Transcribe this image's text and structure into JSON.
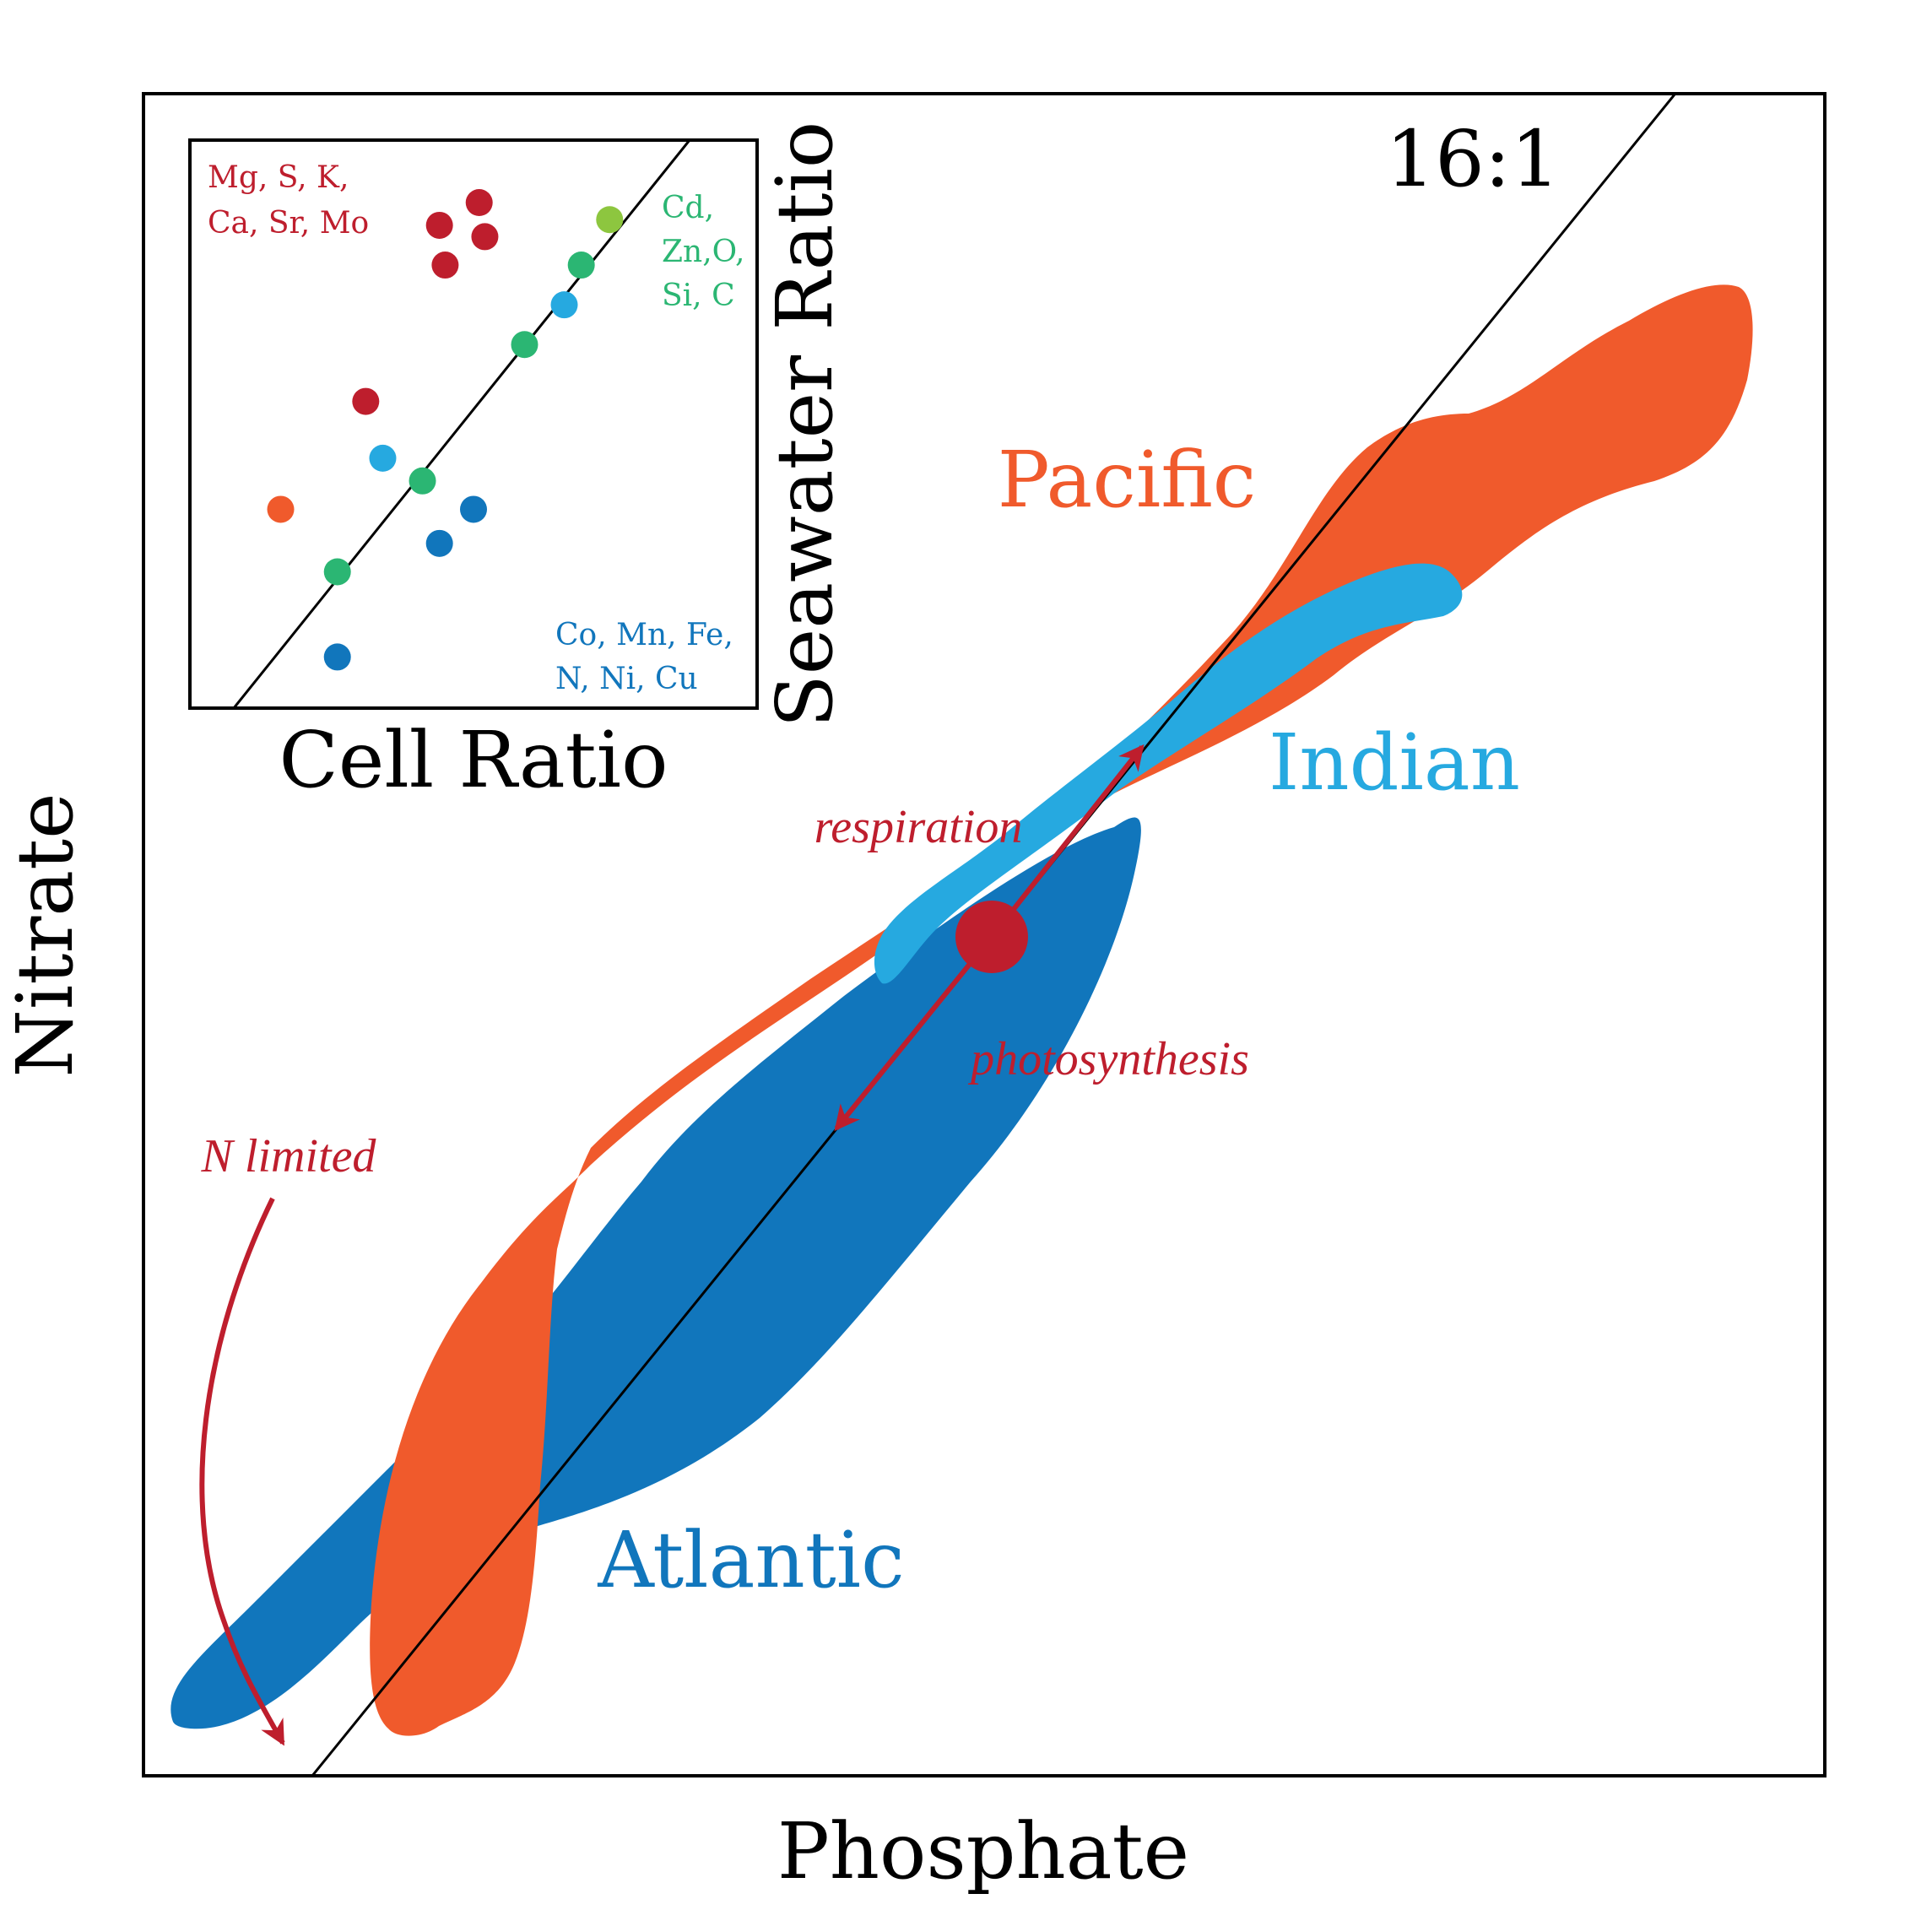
{
  "colors": {
    "pacific": "#F05A2C",
    "indian": "#26A9E0",
    "atlantic": "#1176BC",
    "arrow": "#BE1E2D",
    "group_red": "#BE1E2D",
    "group_green": "#2BB673",
    "group_blue": "#1176BC",
    "light_green": "#8DC63F",
    "axis": "#000000"
  },
  "main": {
    "x_label": "Phosphate",
    "y_label": "Nitrate",
    "ratio_label": "16:1",
    "regions": {
      "pacific": "Pacific",
      "indian": "Indian",
      "atlantic": "Atlantic"
    },
    "annotations": {
      "respiration": "respiration",
      "photosynthesis": "photosynthesis",
      "n_limited": "N limited"
    }
  },
  "inset": {
    "x_label": "Cell Ratio",
    "y_label": "Seawater Ratio",
    "groups": {
      "red_line1": "Mg, S, K,",
      "red_line2": "Ca, Sr, Mo",
      "green_line1": "Cd,",
      "green_line2": "Zn,O,",
      "green_line3": "Si, C",
      "blue_line1": "Co, Mn, Fe,",
      "blue_line2": "N, Ni, Cu"
    },
    "points": [
      {
        "group": "red",
        "x": 0.51,
        "y": 0.89
      },
      {
        "group": "red",
        "x": 0.44,
        "y": 0.85
      },
      {
        "group": "red",
        "x": 0.52,
        "y": 0.83
      },
      {
        "group": "red",
        "x": 0.45,
        "y": 0.78
      },
      {
        "group": "red",
        "x": 0.31,
        "y": 0.54
      },
      {
        "group": "light_green",
        "x": 0.74,
        "y": 0.86
      },
      {
        "group": "green",
        "x": 0.69,
        "y": 0.78
      },
      {
        "group": "cyan",
        "x": 0.66,
        "y": 0.71
      },
      {
        "group": "green",
        "x": 0.59,
        "y": 0.64
      },
      {
        "group": "cyan",
        "x": 0.34,
        "y": 0.44
      },
      {
        "group": "green",
        "x": 0.41,
        "y": 0.4
      },
      {
        "group": "blue",
        "x": 0.5,
        "y": 0.35
      },
      {
        "group": "orange",
        "x": 0.16,
        "y": 0.35
      },
      {
        "group": "blue",
        "x": 0.44,
        "y": 0.29
      },
      {
        "group": "green",
        "x": 0.26,
        "y": 0.24
      },
      {
        "group": "blue",
        "x": 0.26,
        "y": 0.09
      }
    ]
  }
}
